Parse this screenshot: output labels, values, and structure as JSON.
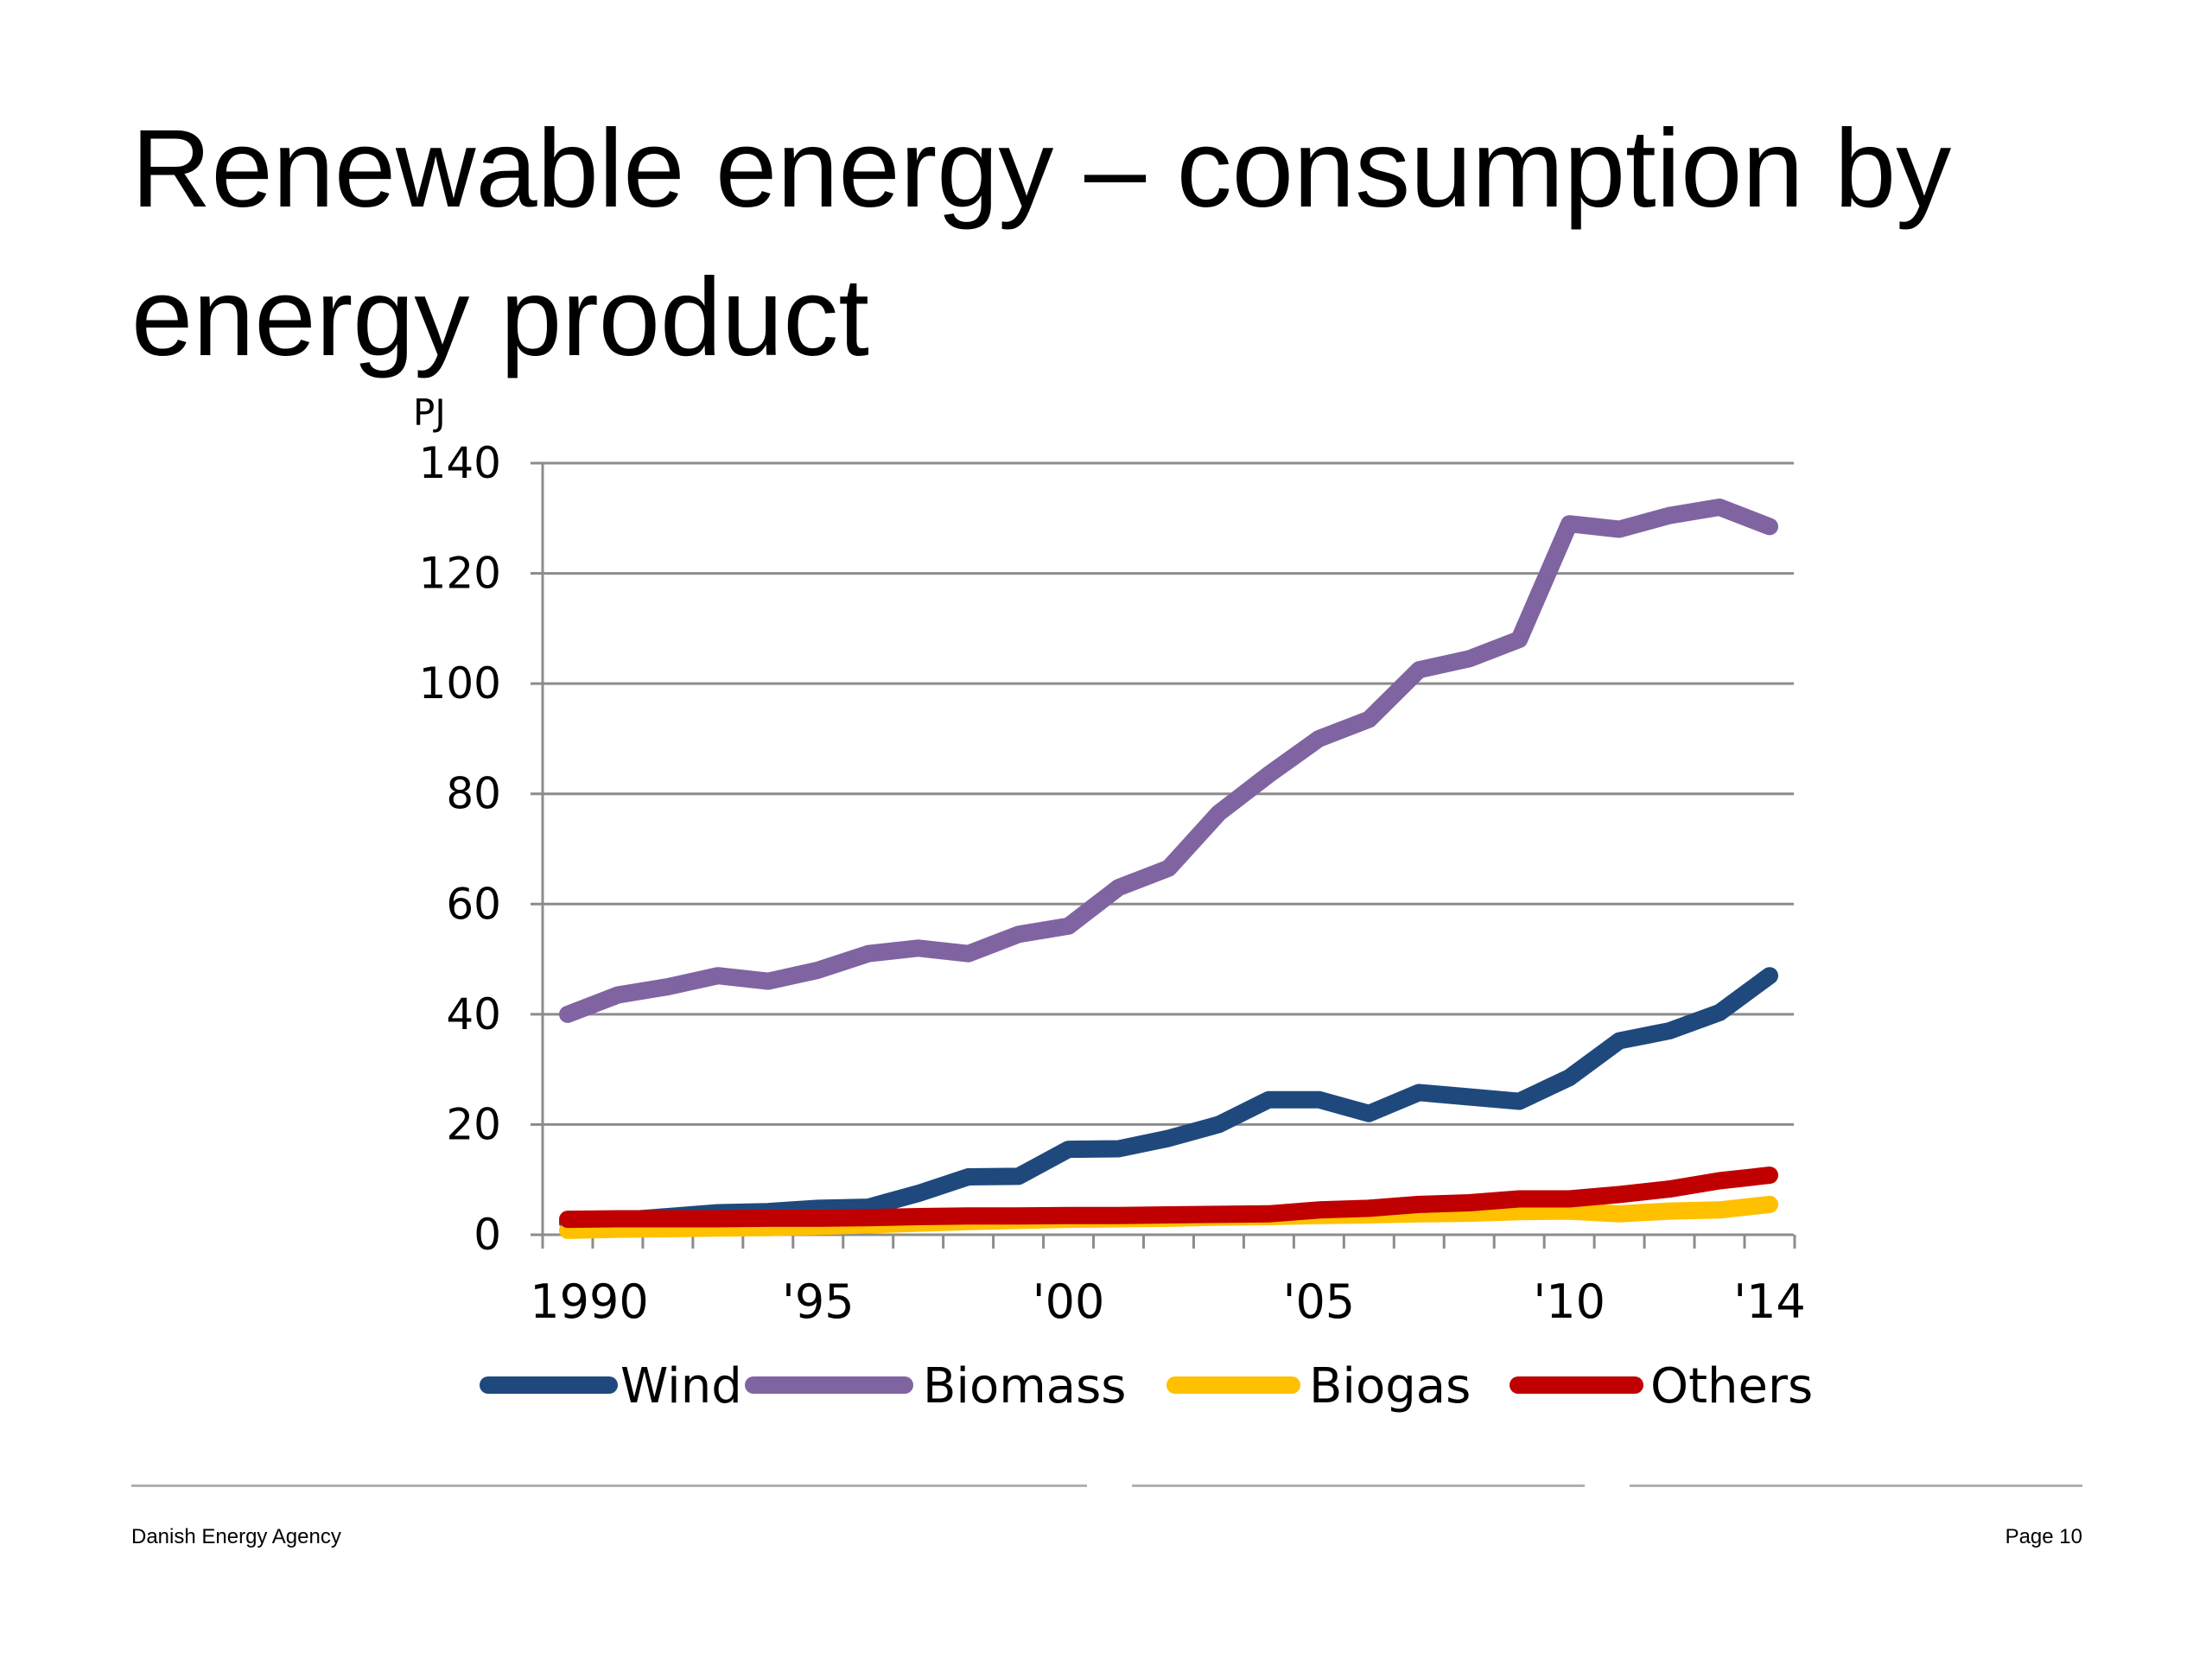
{
  "slide": {
    "title": "Renewable energy – consumption by energy product"
  },
  "footer": {
    "organization": "Danish Energy Agency",
    "page_label": "Page 10"
  },
  "chart_data": {
    "type": "line",
    "title": "",
    "ylabel": "PJ",
    "xlabel": "",
    "x": [
      1990,
      1991,
      1992,
      1993,
      1994,
      1995,
      1996,
      1997,
      1998,
      1999,
      2000,
      2001,
      2002,
      2003,
      2004,
      2005,
      2006,
      2007,
      2008,
      2009,
      2010,
      2011,
      2012,
      2013,
      2014
    ],
    "x_ticks": [
      {
        "value": 1990,
        "label": "1990"
      },
      {
        "value": 1995,
        "label": "'95"
      },
      {
        "value": 2000,
        "label": "'00"
      },
      {
        "value": 2005,
        "label": "'05"
      },
      {
        "value": 2010,
        "label": "'10"
      },
      {
        "value": 2014,
        "label": "'14"
      }
    ],
    "ylim": [
      0,
      140
    ],
    "y_ticks": [
      0,
      20,
      40,
      60,
      80,
      100,
      120,
      140
    ],
    "grid": true,
    "legend_position": "bottom",
    "series": [
      {
        "name": "Wind",
        "color": "#1f497d",
        "values": [
          2.2,
          2.6,
          3.3,
          4.0,
          4.2,
          4.8,
          5.0,
          7.5,
          10.5,
          10.6,
          15.5,
          15.6,
          17.5,
          20.0,
          24.5,
          24.5,
          22.0,
          25.8,
          25.0,
          24.2,
          28.5,
          35.2,
          37.0,
          40.3,
          47.0
        ]
      },
      {
        "name": "Biomass",
        "color": "#8064a2",
        "values": [
          40.0,
          43.5,
          45.0,
          47.0,
          46.0,
          48.0,
          51.0,
          52.0,
          51.0,
          54.5,
          56.0,
          63.0,
          66.5,
          76.5,
          83.5,
          90.0,
          93.5,
          102.5,
          104.5,
          108.0,
          129.0,
          128.0,
          130.5,
          132.0,
          128.5
        ]
      },
      {
        "name": "Biogas",
        "color": "#ffc000",
        "values": [
          0.8,
          1.0,
          1.1,
          1.2,
          1.3,
          1.5,
          1.8,
          2.1,
          2.4,
          2.6,
          2.8,
          2.9,
          3.0,
          3.2,
          3.3,
          3.5,
          3.6,
          3.8,
          3.9,
          4.2,
          4.3,
          3.8,
          4.3,
          4.5,
          5.5
        ]
      },
      {
        "name": "Others",
        "color": "#c00000",
        "values": [
          2.8,
          2.9,
          2.9,
          2.9,
          3.0,
          3.0,
          3.1,
          3.3,
          3.4,
          3.4,
          3.5,
          3.5,
          3.6,
          3.7,
          3.8,
          4.5,
          4.8,
          5.5,
          5.8,
          6.5,
          6.5,
          7.3,
          8.3,
          9.8,
          10.8
        ]
      }
    ]
  }
}
